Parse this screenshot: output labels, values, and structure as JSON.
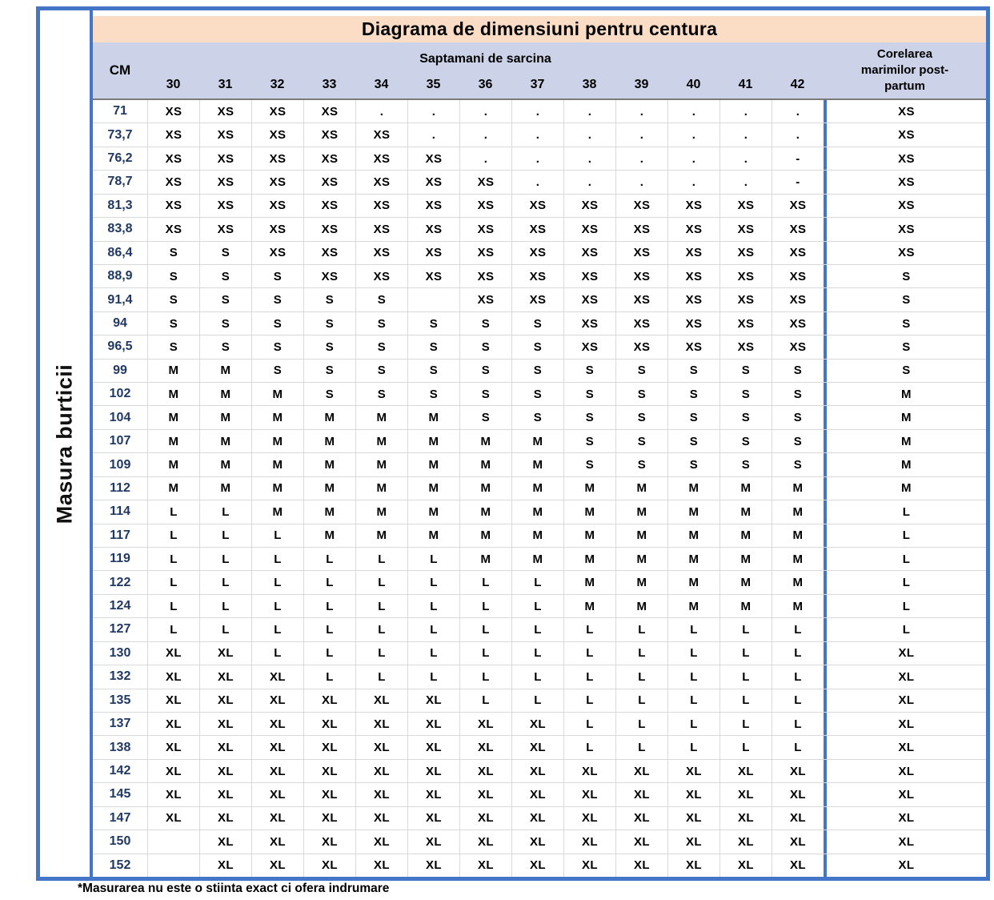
{
  "title": "Diagrama de dimensiuni pentru centura",
  "side_label": "Masura burticii",
  "footnote": "*Masurarea nu este o stiinta exact ci ofera indrumare",
  "header": {
    "cm_label": "CM",
    "weeks_group_label": "Saptamani de sarcina",
    "postpartum_lines": [
      "Corelarea",
      "marimilor post-",
      "partum"
    ]
  },
  "colors": {
    "border_blue": "#4575c6",
    "title_bg": "#fbdcc5",
    "header_bg": "#ccd2e8",
    "cm_text": "#1f3864",
    "gridline": "#d9d9d9"
  },
  "chart_data": {
    "type": "table",
    "title": "Diagrama de dimensiuni pentru centura",
    "row_header": "CM",
    "row_axis_label": "Masura burticii",
    "column_group": "Saptamani de sarcina",
    "week_columns": [
      "30",
      "31",
      "32",
      "33",
      "34",
      "35",
      "36",
      "37",
      "38",
      "39",
      "40",
      "41",
      "42"
    ],
    "postpartum_column": "Corelarea marimilor post-partum",
    "rows": [
      {
        "cm": "71",
        "sizes": [
          "XS",
          "XS",
          "XS",
          "XS",
          ".",
          ".",
          ".",
          ".",
          ".",
          ".",
          ".",
          ".",
          "."
        ],
        "postpartum": "XS"
      },
      {
        "cm": "73,7",
        "sizes": [
          "XS",
          "XS",
          "XS",
          "XS",
          "XS",
          ".",
          ".",
          ".",
          ".",
          ".",
          ".",
          ".",
          "."
        ],
        "postpartum": "XS"
      },
      {
        "cm": "76,2",
        "sizes": [
          "XS",
          "XS",
          "XS",
          "XS",
          "XS",
          "XS",
          ".",
          ".",
          ".",
          ".",
          ".",
          ".",
          "-"
        ],
        "postpartum": "XS"
      },
      {
        "cm": "78,7",
        "sizes": [
          "XS",
          "XS",
          "XS",
          "XS",
          "XS",
          "XS",
          "XS",
          ".",
          ".",
          ".",
          ".",
          ".",
          "-"
        ],
        "postpartum": "XS"
      },
      {
        "cm": "81,3",
        "sizes": [
          "XS",
          "XS",
          "XS",
          "XS",
          "XS",
          "XS",
          "XS",
          "XS",
          "XS",
          "XS",
          "XS",
          "XS",
          "XS"
        ],
        "postpartum": "XS"
      },
      {
        "cm": "83,8",
        "sizes": [
          "XS",
          "XS",
          "XS",
          "XS",
          "XS",
          "XS",
          "XS",
          "XS",
          "XS",
          "XS",
          "XS",
          "XS",
          "XS"
        ],
        "postpartum": "XS"
      },
      {
        "cm": "86,4",
        "sizes": [
          "S",
          "S",
          "XS",
          "XS",
          "XS",
          "XS",
          "XS",
          "XS",
          "XS",
          "XS",
          "XS",
          "XS",
          "XS"
        ],
        "postpartum": "XS"
      },
      {
        "cm": "88,9",
        "sizes": [
          "S",
          "S",
          "S",
          "XS",
          "XS",
          "XS",
          "XS",
          "XS",
          "XS",
          "XS",
          "XS",
          "XS",
          "XS"
        ],
        "postpartum": "S"
      },
      {
        "cm": "91,4",
        "sizes": [
          "S",
          "S",
          "S",
          "S",
          "S",
          "",
          "XS",
          "XS",
          "XS",
          "XS",
          "XS",
          "XS",
          "XS"
        ],
        "postpartum": "S"
      },
      {
        "cm": "94",
        "sizes": [
          "S",
          "S",
          "S",
          "S",
          "S",
          "S",
          "S",
          "S",
          "XS",
          "XS",
          "XS",
          "XS",
          "XS"
        ],
        "postpartum": "S"
      },
      {
        "cm": "96,5",
        "sizes": [
          "S",
          "S",
          "S",
          "S",
          "S",
          "S",
          "S",
          "S",
          "XS",
          "XS",
          "XS",
          "XS",
          "XS"
        ],
        "postpartum": "S"
      },
      {
        "cm": "99",
        "sizes": [
          "M",
          "M",
          "S",
          "S",
          "S",
          "S",
          "S",
          "S",
          "S",
          "S",
          "S",
          "S",
          "S"
        ],
        "postpartum": "S"
      },
      {
        "cm": "102",
        "sizes": [
          "M",
          "M",
          "M",
          "S",
          "S",
          "S",
          "S",
          "S",
          "S",
          "S",
          "S",
          "S",
          "S"
        ],
        "postpartum": "M"
      },
      {
        "cm": "104",
        "sizes": [
          "M",
          "M",
          "M",
          "M",
          "M",
          "M",
          "S",
          "S",
          "S",
          "S",
          "S",
          "S",
          "S"
        ],
        "postpartum": "M"
      },
      {
        "cm": "107",
        "sizes": [
          "M",
          "M",
          "M",
          "M",
          "M",
          "M",
          "M",
          "M",
          "S",
          "S",
          "S",
          "S",
          "S"
        ],
        "postpartum": "M"
      },
      {
        "cm": "109",
        "sizes": [
          "M",
          "M",
          "M",
          "M",
          "M",
          "M",
          "M",
          "M",
          "S",
          "S",
          "S",
          "S",
          "S"
        ],
        "postpartum": "M"
      },
      {
        "cm": "112",
        "sizes": [
          "M",
          "M",
          "M",
          "M",
          "M",
          "M",
          "M",
          "M",
          "M",
          "M",
          "M",
          "M",
          "M"
        ],
        "postpartum": "M"
      },
      {
        "cm": "114",
        "sizes": [
          "L",
          "L",
          "M",
          "M",
          "M",
          "M",
          "M",
          "M",
          "M",
          "M",
          "M",
          "M",
          "M"
        ],
        "postpartum": "L"
      },
      {
        "cm": "117",
        "sizes": [
          "L",
          "L",
          "L",
          "M",
          "M",
          "M",
          "M",
          "M",
          "M",
          "M",
          "M",
          "M",
          "M"
        ],
        "postpartum": "L"
      },
      {
        "cm": "119",
        "sizes": [
          "L",
          "L",
          "L",
          "L",
          "L",
          "L",
          "M",
          "M",
          "M",
          "M",
          "M",
          "M",
          "M"
        ],
        "postpartum": "L"
      },
      {
        "cm": "122",
        "sizes": [
          "L",
          "L",
          "L",
          "L",
          "L",
          "L",
          "L",
          "L",
          "M",
          "M",
          "M",
          "M",
          "M"
        ],
        "postpartum": "L"
      },
      {
        "cm": "124",
        "sizes": [
          "L",
          "L",
          "L",
          "L",
          "L",
          "L",
          "L",
          "L",
          "M",
          "M",
          "M",
          "M",
          "M"
        ],
        "postpartum": "L"
      },
      {
        "cm": "127",
        "sizes": [
          "L",
          "L",
          "L",
          "L",
          "L",
          "L",
          "L",
          "L",
          "L",
          "L",
          "L",
          "L",
          "L"
        ],
        "postpartum": "L"
      },
      {
        "cm": "130",
        "sizes": [
          "XL",
          "XL",
          "L",
          "L",
          "L",
          "L",
          "L",
          "L",
          "L",
          "L",
          "L",
          "L",
          "L"
        ],
        "postpartum": "XL"
      },
      {
        "cm": "132",
        "sizes": [
          "XL",
          "XL",
          "XL",
          "L",
          "L",
          "L",
          "L",
          "L",
          "L",
          "L",
          "L",
          "L",
          "L"
        ],
        "postpartum": "XL"
      },
      {
        "cm": "135",
        "sizes": [
          "XL",
          "XL",
          "XL",
          "XL",
          "XL",
          "XL",
          "L",
          "L",
          "L",
          "L",
          "L",
          "L",
          "L"
        ],
        "postpartum": "XL"
      },
      {
        "cm": "137",
        "sizes": [
          "XL",
          "XL",
          "XL",
          "XL",
          "XL",
          "XL",
          "XL",
          "XL",
          "L",
          "L",
          "L",
          "L",
          "L"
        ],
        "postpartum": "XL"
      },
      {
        "cm": "138",
        "sizes": [
          "XL",
          "XL",
          "XL",
          "XL",
          "XL",
          "XL",
          "XL",
          "XL",
          "L",
          "L",
          "L",
          "L",
          "L"
        ],
        "postpartum": "XL"
      },
      {
        "cm": "142",
        "sizes": [
          "XL",
          "XL",
          "XL",
          "XL",
          "XL",
          "XL",
          "XL",
          "XL",
          "XL",
          "XL",
          "XL",
          "XL",
          "XL"
        ],
        "postpartum": "XL"
      },
      {
        "cm": "145",
        "sizes": [
          "XL",
          "XL",
          "XL",
          "XL",
          "XL",
          "XL",
          "XL",
          "XL",
          "XL",
          "XL",
          "XL",
          "XL",
          "XL"
        ],
        "postpartum": "XL"
      },
      {
        "cm": "147",
        "sizes": [
          "XL",
          "XL",
          "XL",
          "XL",
          "XL",
          "XL",
          "XL",
          "XL",
          "XL",
          "XL",
          "XL",
          "XL",
          "XL"
        ],
        "postpartum": "XL"
      },
      {
        "cm": "150",
        "sizes": [
          "",
          "XL",
          "XL",
          "XL",
          "XL",
          "XL",
          "XL",
          "XL",
          "XL",
          "XL",
          "XL",
          "XL",
          "XL"
        ],
        "postpartum": "XL"
      },
      {
        "cm": "152",
        "sizes": [
          "",
          "XL",
          "XL",
          "XL",
          "XL",
          "XL",
          "XL",
          "XL",
          "XL",
          "XL",
          "XL",
          "XL",
          "XL"
        ],
        "postpartum": "XL"
      }
    ]
  }
}
